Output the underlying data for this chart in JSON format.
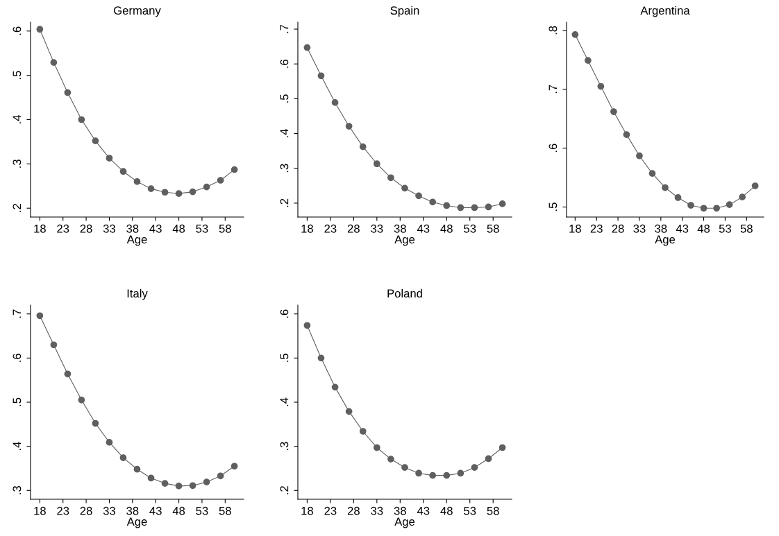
{
  "chart_data": [
    {
      "type": "line",
      "title": "Germany",
      "xlabel": "Age",
      "marker": "circle",
      "grid": false,
      "x": [
        18,
        21,
        24,
        27,
        30,
        33,
        36,
        39,
        42,
        45,
        48,
        51,
        54,
        57,
        60
      ],
      "series": [
        {
          "color": "#5f5f5f",
          "values": [
            0.604,
            0.529,
            0.461,
            0.4,
            0.352,
            0.313,
            0.283,
            0.26,
            0.244,
            0.236,
            0.233,
            0.237,
            0.248,
            0.263,
            0.287
          ]
        }
      ],
      "xlim": [
        16,
        62
      ],
      "xticks": [
        18,
        23,
        28,
        33,
        38,
        43,
        48,
        53,
        58
      ],
      "ylim": [
        0.18,
        0.62
      ],
      "yticks": [
        {
          "value": 0.2,
          "label": ".2"
        },
        {
          "value": 0.3,
          "label": ".3"
        },
        {
          "value": 0.4,
          "label": ".4"
        },
        {
          "value": 0.5,
          "label": ".5"
        },
        {
          "value": 0.6,
          "label": ".6"
        }
      ]
    },
    {
      "type": "line",
      "title": "Spain",
      "xlabel": "Age",
      "marker": "circle",
      "grid": false,
      "x": [
        18,
        21,
        24,
        27,
        30,
        33,
        36,
        39,
        42,
        45,
        48,
        51,
        54,
        57,
        60
      ],
      "series": [
        {
          "color": "#5f5f5f",
          "values": [
            0.647,
            0.566,
            0.489,
            0.421,
            0.362,
            0.313,
            0.273,
            0.243,
            0.221,
            0.203,
            0.193,
            0.187,
            0.187,
            0.189,
            0.198
          ]
        }
      ],
      "xlim": [
        16,
        62
      ],
      "xticks": [
        18,
        23,
        28,
        33,
        38,
        43,
        48,
        53,
        58
      ],
      "ylim": [
        0.16,
        0.72
      ],
      "yticks": [
        {
          "value": 0.2,
          "label": ".2"
        },
        {
          "value": 0.3,
          "label": ".3"
        },
        {
          "value": 0.4,
          "label": ".4"
        },
        {
          "value": 0.5,
          "label": ".5"
        },
        {
          "value": 0.6,
          "label": ".6"
        },
        {
          "value": 0.7,
          "label": ".7"
        }
      ]
    },
    {
      "type": "line",
      "title": "Argentina",
      "xlabel": "Age",
      "marker": "circle",
      "grid": false,
      "x": [
        18,
        21,
        24,
        27,
        30,
        33,
        36,
        39,
        42,
        45,
        48,
        51,
        54,
        57,
        60
      ],
      "series": [
        {
          "color": "#5f5f5f",
          "values": [
            0.793,
            0.749,
            0.705,
            0.662,
            0.623,
            0.587,
            0.557,
            0.533,
            0.516,
            0.503,
            0.498,
            0.498,
            0.504,
            0.517,
            0.536
          ]
        }
      ],
      "xlim": [
        16,
        62
      ],
      "xticks": [
        18,
        23,
        28,
        33,
        38,
        43,
        48,
        53,
        58
      ],
      "ylim": [
        0.483,
        0.814
      ],
      "yticks": [
        {
          "value": 0.5,
          "label": ".5"
        },
        {
          "value": 0.6,
          "label": ".6"
        },
        {
          "value": 0.7,
          "label": ".7"
        },
        {
          "value": 0.8,
          "label": ".8"
        }
      ]
    },
    {
      "type": "line",
      "title": "Italy",
      "xlabel": "Age",
      "marker": "circle",
      "grid": false,
      "x": [
        18,
        21,
        24,
        27,
        30,
        33,
        36,
        39,
        42,
        45,
        48,
        51,
        54,
        57,
        60
      ],
      "series": [
        {
          "color": "#5f5f5f",
          "values": [
            0.696,
            0.63,
            0.564,
            0.505,
            0.452,
            0.409,
            0.374,
            0.348,
            0.328,
            0.316,
            0.31,
            0.311,
            0.319,
            0.333,
            0.355
          ]
        }
      ],
      "xlim": [
        16,
        62
      ],
      "xticks": [
        18,
        23,
        28,
        33,
        38,
        43,
        48,
        53,
        58
      ],
      "ylim": [
        0.28,
        0.72
      ],
      "yticks": [
        {
          "value": 0.3,
          "label": ".3"
        },
        {
          "value": 0.4,
          "label": ".4"
        },
        {
          "value": 0.5,
          "label": ".5"
        },
        {
          "value": 0.6,
          "label": ".6"
        },
        {
          "value": 0.7,
          "label": ".7"
        }
      ]
    },
    {
      "type": "line",
      "title": "Poland",
      "xlabel": "Age",
      "marker": "circle",
      "grid": false,
      "x": [
        18,
        21,
        24,
        27,
        30,
        33,
        36,
        39,
        42,
        45,
        48,
        51,
        54,
        57,
        60
      ],
      "series": [
        {
          "color": "#5f5f5f",
          "values": [
            0.574,
            0.5,
            0.434,
            0.379,
            0.334,
            0.297,
            0.271,
            0.252,
            0.239,
            0.234,
            0.234,
            0.239,
            0.252,
            0.272,
            0.297
          ]
        }
      ],
      "xlim": [
        16,
        62
      ],
      "xticks": [
        18,
        23,
        28,
        33,
        38,
        43,
        48,
        53,
        58
      ],
      "ylim": [
        0.18,
        0.62
      ],
      "yticks": [
        {
          "value": 0.2,
          "label": ".2"
        },
        {
          "value": 0.3,
          "label": ".3"
        },
        {
          "value": 0.4,
          "label": ".4"
        },
        {
          "value": 0.5,
          "label": ".5"
        },
        {
          "value": 0.6,
          "label": ".6"
        }
      ]
    }
  ]
}
